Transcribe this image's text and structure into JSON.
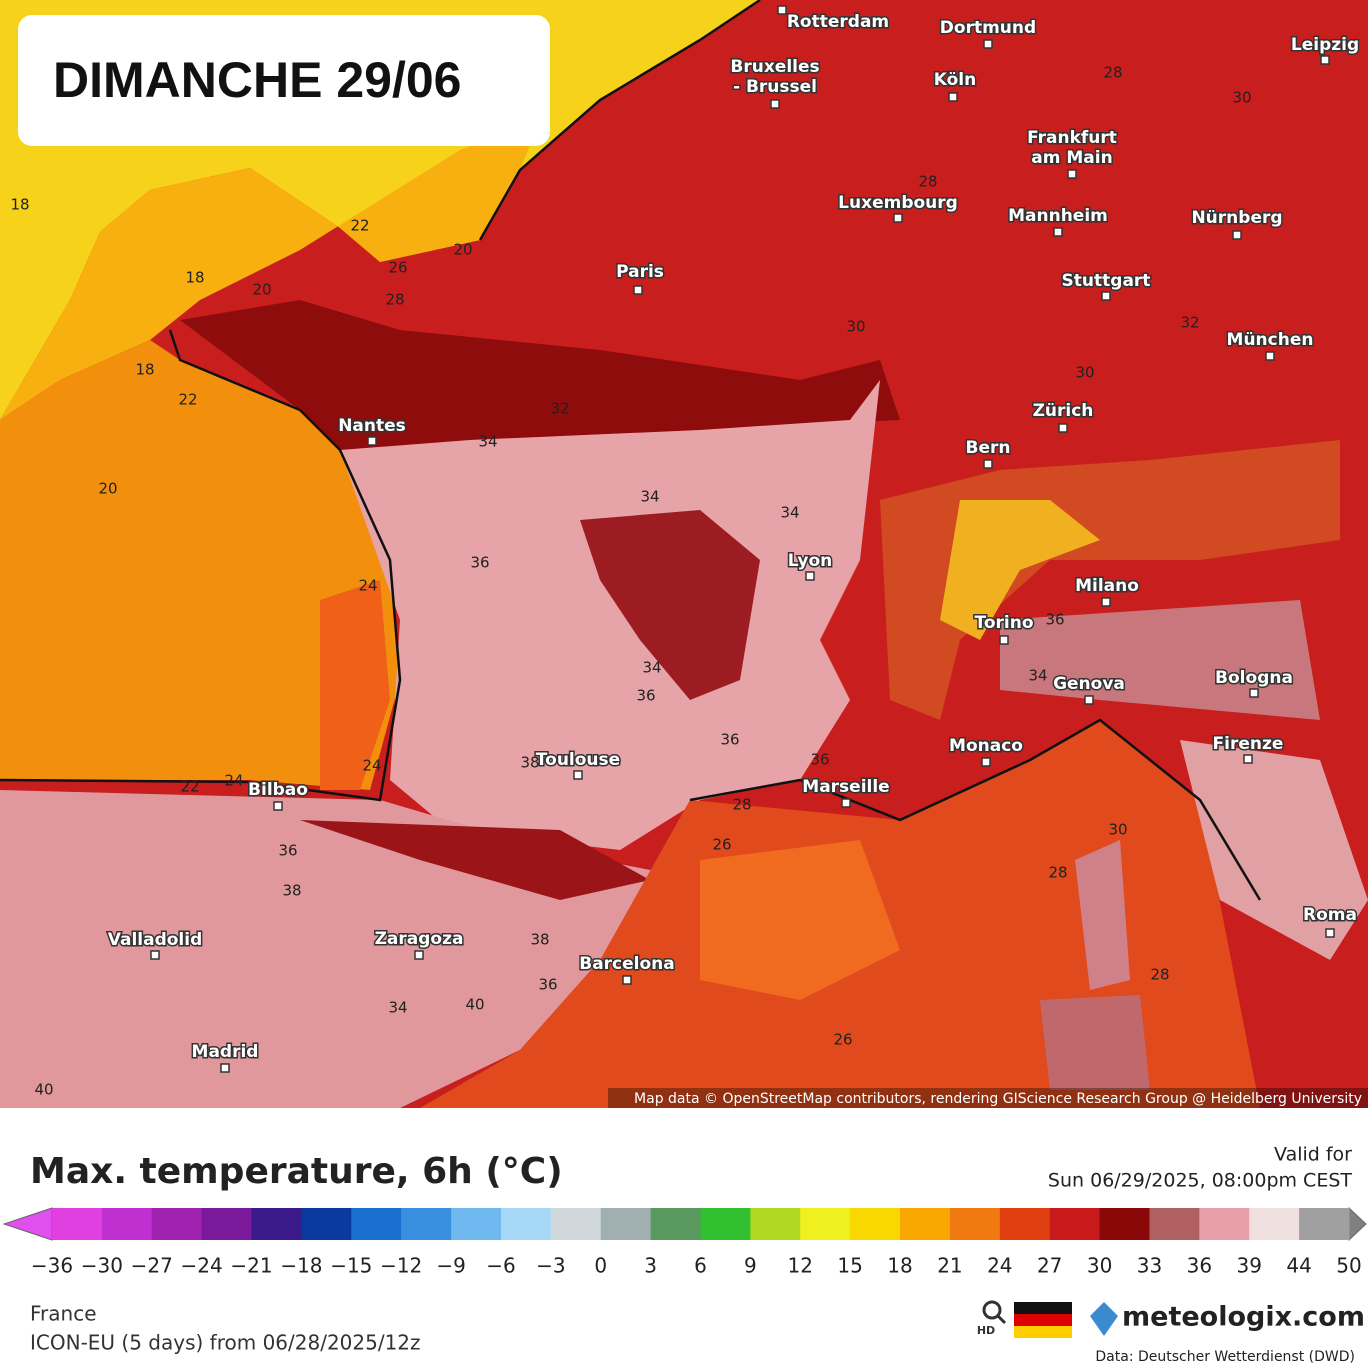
{
  "header": {
    "title": "DIMANCHE 29/06"
  },
  "map": {
    "cities": [
      {
        "lines": [
          "Rotterdam"
        ]
      },
      {
        "lines": [
          "Dortmund"
        ]
      },
      {
        "lines": [
          "Leipzig"
        ]
      },
      {
        "lines": [
          "Bruxelles",
          "- Brussel"
        ]
      },
      {
        "lines": [
          "Köln"
        ]
      },
      {
        "lines": [
          "Frankfurt",
          "am Main"
        ]
      },
      {
        "lines": [
          "Luxembourg"
        ]
      },
      {
        "lines": [
          "Mannheim"
        ]
      },
      {
        "lines": [
          "Nürnberg"
        ]
      },
      {
        "lines": [
          "Stuttgart"
        ]
      },
      {
        "lines": [
          "München"
        ]
      },
      {
        "lines": [
          "Paris"
        ]
      },
      {
        "lines": [
          "Nantes"
        ]
      },
      {
        "lines": [
          "Zürich"
        ]
      },
      {
        "lines": [
          "Bern"
        ]
      },
      {
        "lines": [
          "Lyon"
        ]
      },
      {
        "lines": [
          "Milano"
        ]
      },
      {
        "lines": [
          "Torino"
        ]
      },
      {
        "lines": [
          "Genova"
        ]
      },
      {
        "lines": [
          "Bologna"
        ]
      },
      {
        "lines": [
          "Monaco"
        ]
      },
      {
        "lines": [
          "Firenze"
        ]
      },
      {
        "lines": [
          "Toulouse"
        ]
      },
      {
        "lines": [
          "Marseille"
        ]
      },
      {
        "lines": [
          "Bilbao"
        ]
      },
      {
        "lines": [
          "Roma"
        ]
      },
      {
        "lines": [
          "Valladolid"
        ]
      },
      {
        "lines": [
          "Zaragoza"
        ]
      },
      {
        "lines": [
          "Barcelona"
        ]
      },
      {
        "lines": [
          "Madrid"
        ]
      }
    ],
    "contour_labels": [
      18,
      18,
      18,
      20,
      20,
      20,
      22,
      22,
      22,
      24,
      24,
      24,
      26,
      26,
      26,
      28,
      28,
      28,
      28,
      28,
      28,
      30,
      30,
      30,
      32,
      32,
      34,
      34,
      34,
      34,
      34,
      34,
      36,
      36,
      36,
      36,
      36,
      36,
      36,
      38,
      38,
      38,
      40,
      40,
      30
    ],
    "attribution": "Map data © OpenStreetMap contributors, rendering GIScience Research Group @ Heidelberg University"
  },
  "legend": {
    "title": "Max. temperature, 6h (°C)",
    "valid_label": "Valid for",
    "valid_time": "Sun 06/29/2025, 08:00pm CEST",
    "ticks": [
      "−36",
      "−30",
      "−27",
      "−24",
      "−21",
      "−18",
      "−15",
      "−12",
      "−9",
      "−6",
      "−3",
      "0",
      "3",
      "6",
      "9",
      "12",
      "15",
      "18",
      "21",
      "24",
      "27",
      "30",
      "33",
      "36",
      "39",
      "44",
      "50"
    ],
    "colors": [
      "#e040e0",
      "#c030d0",
      "#a020b0",
      "#7a1a9a",
      "#3a1a8a",
      "#0a3aa0",
      "#1a70d0",
      "#3a90e0",
      "#70b8f0",
      "#a8d8f8",
      "#d0d8dc",
      "#a0b0b0",
      "#5a9a60",
      "#30c030",
      "#b0d820",
      "#f0f020",
      "#f8d800",
      "#f8a800",
      "#f07a10",
      "#e04010",
      "#c81a1a",
      "#8a0808",
      "#b06060",
      "#e8a0a8",
      "#f0e0e0",
      "#a0a0a0"
    ],
    "end_colors": [
      "#e050f0",
      "#808080"
    ]
  },
  "footer": {
    "region": "France",
    "model": "ICON-EU (5 days) from 06/28/2025/12z",
    "hd": "HD",
    "brand": "meteologix.com",
    "source": "Data: Deutscher Wetterdienst (DWD)"
  }
}
